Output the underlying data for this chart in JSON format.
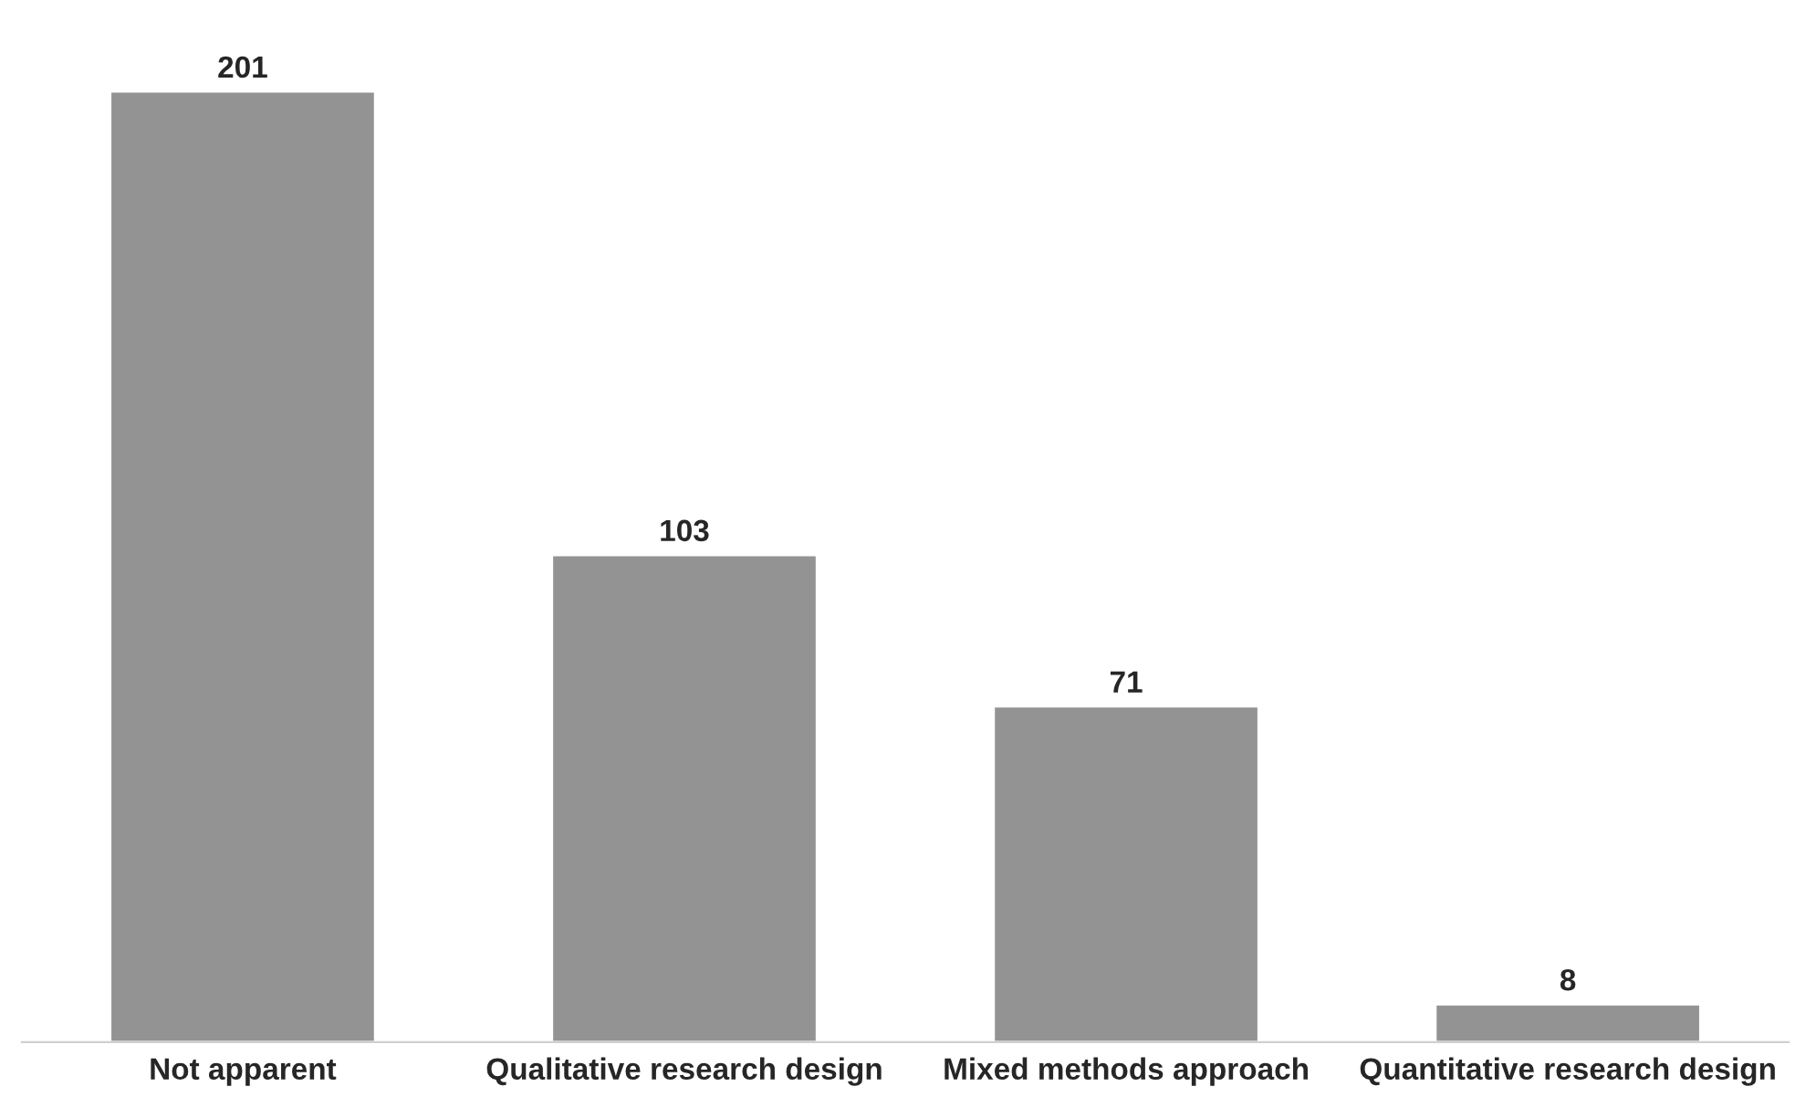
{
  "chart_data": {
    "type": "bar",
    "categories": [
      "Not apparent",
      "Qualitative research design",
      "Mixed methods approach",
      "Quantitative research design"
    ],
    "values": [
      201,
      103,
      71,
      8
    ],
    "color": "#939393",
    "data_labels": true,
    "grid": false,
    "legend": false
  }
}
